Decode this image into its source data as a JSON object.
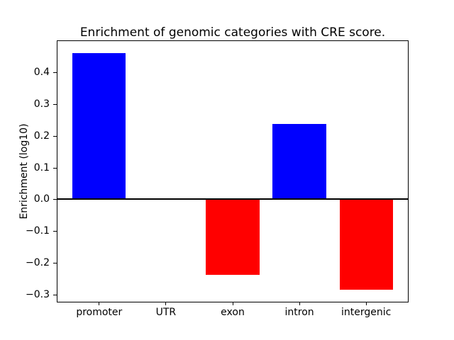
{
  "figure": {
    "background": "#ffffff"
  },
  "chart_data": {
    "type": "bar",
    "title": "Enrichment of genomic categories with CRE score.",
    "xlabel": "",
    "ylabel": "Enrichment (log10)",
    "categories": [
      "promoter",
      "UTR",
      "exon",
      "intron",
      "intergenic"
    ],
    "values": [
      0.46,
      0.0,
      -0.238,
      0.238,
      -0.285
    ],
    "bar_width_units": 0.8,
    "xlim": [
      -0.625,
      4.625
    ],
    "ylim": [
      -0.322,
      0.498
    ],
    "yticks": {
      "values": [
        0.4,
        0.3,
        0.2,
        0.1,
        0.0,
        -0.1,
        -0.2,
        -0.3
      ],
      "labels": [
        "0.4",
        "0.3",
        "0.2",
        "0.1",
        "0.0",
        "−0.1",
        "−0.2",
        "−0.3"
      ]
    },
    "colors": {
      "positive": "#0000ff",
      "negative": "#ff0000",
      "zero_line": "#000000",
      "spine": "#000000",
      "text": "#000000"
    },
    "zero_line": true,
    "grid": false,
    "legend": "none"
  }
}
